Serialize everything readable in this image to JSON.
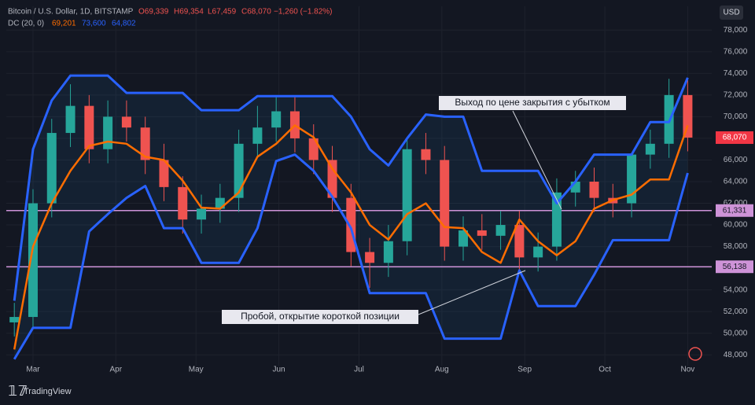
{
  "header": {
    "symbol": "Bitcoin / U.S. Dollar, 1D, BITSTAMP",
    "open": "O69,339",
    "high": "H69,354",
    "low": "L67,459",
    "close": "C68,070",
    "change": "−1,260 (−1.82%)",
    "indicator": "DC (20, 0)",
    "indicator_mid": "69,201",
    "indicator_upper": "73,600",
    "indicator_lower": "64,802",
    "currency": "USD",
    "brand": "TradingView"
  },
  "chart_data": {
    "type": "candlestick",
    "x": [
      -7,
      0,
      7,
      14,
      21,
      28,
      35,
      42,
      49,
      56,
      63,
      70,
      77,
      84,
      91,
      98,
      105,
      112,
      119,
      126,
      133,
      140,
      147,
      154,
      161,
      168,
      175,
      182,
      189,
      196,
      203,
      210,
      217,
      224,
      231,
      238,
      245
    ],
    "open": [
      51000,
      51500,
      62000,
      68500,
      71000,
      67000,
      70000,
      69000,
      66000,
      63500,
      60500,
      61500,
      62500,
      67500,
      69000,
      70500,
      68000,
      66000,
      62500,
      57500,
      56500,
      58500,
      67000,
      66000,
      58000,
      59500,
      59000,
      60000,
      57000,
      58000,
      63000,
      64000,
      62500,
      62000,
      66500,
      67500,
      72000
    ],
    "high": [
      52800,
      63300,
      69800,
      73000,
      72000,
      71500,
      71500,
      70000,
      67500,
      64500,
      62800,
      63800,
      68800,
      71000,
      71800,
      71800,
      69300,
      67300,
      63800,
      58800,
      60000,
      68000,
      68500,
      67300,
      60800,
      61000,
      61300,
      61300,
      59300,
      64300,
      65000,
      65300,
      63800,
      66500,
      68800,
      73500,
      73500
    ],
    "low": [
      49700,
      50500,
      60700,
      67200,
      65700,
      65700,
      67700,
      64700,
      62200,
      59200,
      59200,
      60200,
      61200,
      66200,
      67700,
      66700,
      64700,
      61200,
      56200,
      54200,
      55200,
      57200,
      64700,
      56700,
      56700,
      57700,
      57700,
      55700,
      55700,
      56700,
      61700,
      61200,
      60700,
      60700,
      65200,
      66200,
      66800
    ],
    "close": [
      51500,
      62000,
      68500,
      71000,
      67000,
      70000,
      69000,
      66000,
      63500,
      60500,
      61500,
      62500,
      67500,
      69000,
      70500,
      68000,
      66000,
      62500,
      57500,
      56500,
      58500,
      67000,
      66000,
      58000,
      59500,
      59000,
      60000,
      57000,
      58000,
      63000,
      64000,
      62500,
      62000,
      66500,
      67500,
      72000,
      68070
    ],
    "up_color": "#26a69a",
    "down_color": "#ef5350",
    "channel": [
      {
        "name": "upper",
        "color": "#2962ff",
        "values": [
          53000,
          67000,
          71500,
          73800,
          73800,
          73800,
          72200,
          72200,
          72200,
          72200,
          70600,
          70600,
          70600,
          71900,
          71900,
          71900,
          71900,
          71900,
          70000,
          67000,
          65500,
          68000,
          70200,
          70000,
          70000,
          65000,
          65000,
          65000,
          65000,
          62000,
          64000,
          66500,
          66500,
          66500,
          69500,
          69500,
          73600
        ]
      },
      {
        "name": "lower",
        "color": "#2962ff",
        "values": [
          47600,
          50500,
          50500,
          50500,
          59400,
          61000,
          62500,
          63600,
          59700,
          59700,
          56500,
          56500,
          56500,
          59700,
          65900,
          66500,
          65000,
          62600,
          59700,
          53700,
          53700,
          53700,
          53700,
          49500,
          49500,
          49500,
          49500,
          55800,
          52500,
          52500,
          52500,
          55400,
          58600,
          58600,
          58600,
          58600,
          64800
        ]
      },
      {
        "name": "basis",
        "color": "#ff6d00",
        "values": [
          48500,
          58000,
          62000,
          65000,
          67300,
          67700,
          67500,
          66300,
          66000,
          64100,
          61600,
          61500,
          63000,
          66300,
          67500,
          69200,
          68100,
          65200,
          63000,
          60000,
          58650,
          61000,
          62000,
          59800,
          59700,
          57500,
          56500,
          60500,
          58500,
          57200,
          58500,
          61500,
          62300,
          62800,
          64200,
          64200,
          69200
        ]
      }
    ],
    "levels": [
      {
        "value": 61331,
        "label": "61,331",
        "color": "#ce93d8"
      },
      {
        "value": 56138,
        "label": "56,138",
        "color": "#ce93d8"
      }
    ],
    "last_price": {
      "value": 68070,
      "label": "68,070",
      "color": "#f23645"
    },
    "annotations": [
      "Выход по цене закрытия с убытком",
      "Пробой, открытие короткой позиции"
    ],
    "xlim": [
      -10,
      254
    ],
    "xticks": [
      {
        "value": 0,
        "label": "Mar"
      },
      {
        "value": 31,
        "label": "Apr"
      },
      {
        "value": 61,
        "label": "May"
      },
      {
        "value": 92,
        "label": "Jun"
      },
      {
        "value": 122,
        "label": "Jul"
      },
      {
        "value": 153,
        "label": "Aug"
      },
      {
        "value": 184,
        "label": "Sep"
      },
      {
        "value": 214,
        "label": "Oct"
      },
      {
        "value": 245,
        "label": "Nov"
      }
    ],
    "ylim": [
      47000,
      80200
    ],
    "yticks": [
      {
        "value": 48000,
        "label": "48,000"
      },
      {
        "value": 50000,
        "label": "50,000"
      },
      {
        "value": 52000,
        "label": "52,000"
      },
      {
        "value": 54000,
        "label": "54,000"
      },
      {
        "value": 56000,
        "label": "56,000"
      },
      {
        "value": 58000,
        "label": "58,000"
      },
      {
        "value": 60000,
        "label": "60,000"
      },
      {
        "value": 62000,
        "label": "62,000"
      },
      {
        "value": 64000,
        "label": "64,000"
      },
      {
        "value": 66000,
        "label": "66,000"
      },
      {
        "value": 68000,
        "label": "68,000"
      },
      {
        "value": 70000,
        "label": "70,000"
      },
      {
        "value": 72000,
        "label": "72,000"
      },
      {
        "value": 74000,
        "label": "74,000"
      },
      {
        "value": 76000,
        "label": "76,000"
      },
      {
        "value": 78000,
        "label": "78,000"
      }
    ],
    "grid": true
  }
}
